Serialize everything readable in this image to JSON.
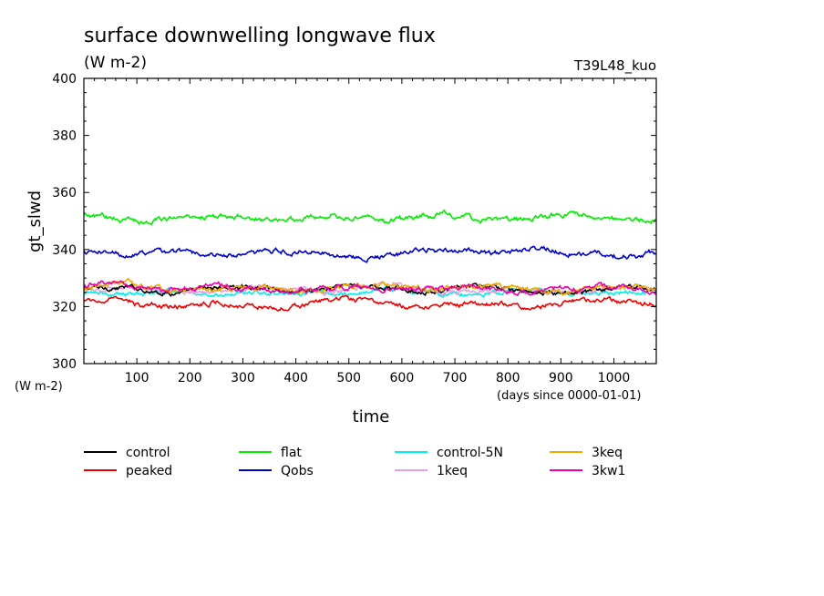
{
  "chart_data": {
    "type": "line",
    "title": "surface downwelling longwave flux",
    "title_units": "(W m-2)",
    "experiment_label": "T39L48_kuo",
    "ylabel": "gt_slwd",
    "yunits": "(W m-2)",
    "xlabel": "time",
    "xunits": "(days since 0000-01-01)",
    "xlim": [
      0,
      1080
    ],
    "ylim": [
      300,
      400
    ],
    "xticks": [
      100,
      200,
      300,
      400,
      500,
      600,
      700,
      800,
      900,
      1000
    ],
    "yticks": [
      300,
      320,
      340,
      360,
      380,
      400
    ],
    "xtick_labels": [
      "100",
      "200",
      "300",
      "400",
      "500",
      "600",
      "700",
      "800",
      "900",
      "1000"
    ],
    "ytick_labels": [
      "300",
      "320",
      "340",
      "360",
      "380",
      "400"
    ],
    "grid": false,
    "legend_position": "bottom",
    "series": [
      {
        "name": "control",
        "color": "#000000",
        "mean": 326.0,
        "amplitude": 1.2
      },
      {
        "name": "peaked",
        "color": "#ee0000",
        "mean": 321.0,
        "amplitude": 1.3
      },
      {
        "name": "flat",
        "color": "#00ee00",
        "mean": 351.0,
        "amplitude": 1.4
      },
      {
        "name": "Qobs",
        "color": "#0000cc",
        "mean": 339.0,
        "amplitude": 1.4
      },
      {
        "name": "control-5N",
        "color": "#00eeee",
        "mean": 325.0,
        "amplitude": 1.2
      },
      {
        "name": "1keq",
        "color": "#e8a0e0",
        "mean": 326.0,
        "amplitude": 1.2
      },
      {
        "name": "3keq",
        "color": "#eeaa00",
        "mean": 326.5,
        "amplitude": 1.4
      },
      {
        "name": "3kw1",
        "color": "#ee00aa",
        "mean": 326.5,
        "amplitude": 1.3
      }
    ]
  }
}
